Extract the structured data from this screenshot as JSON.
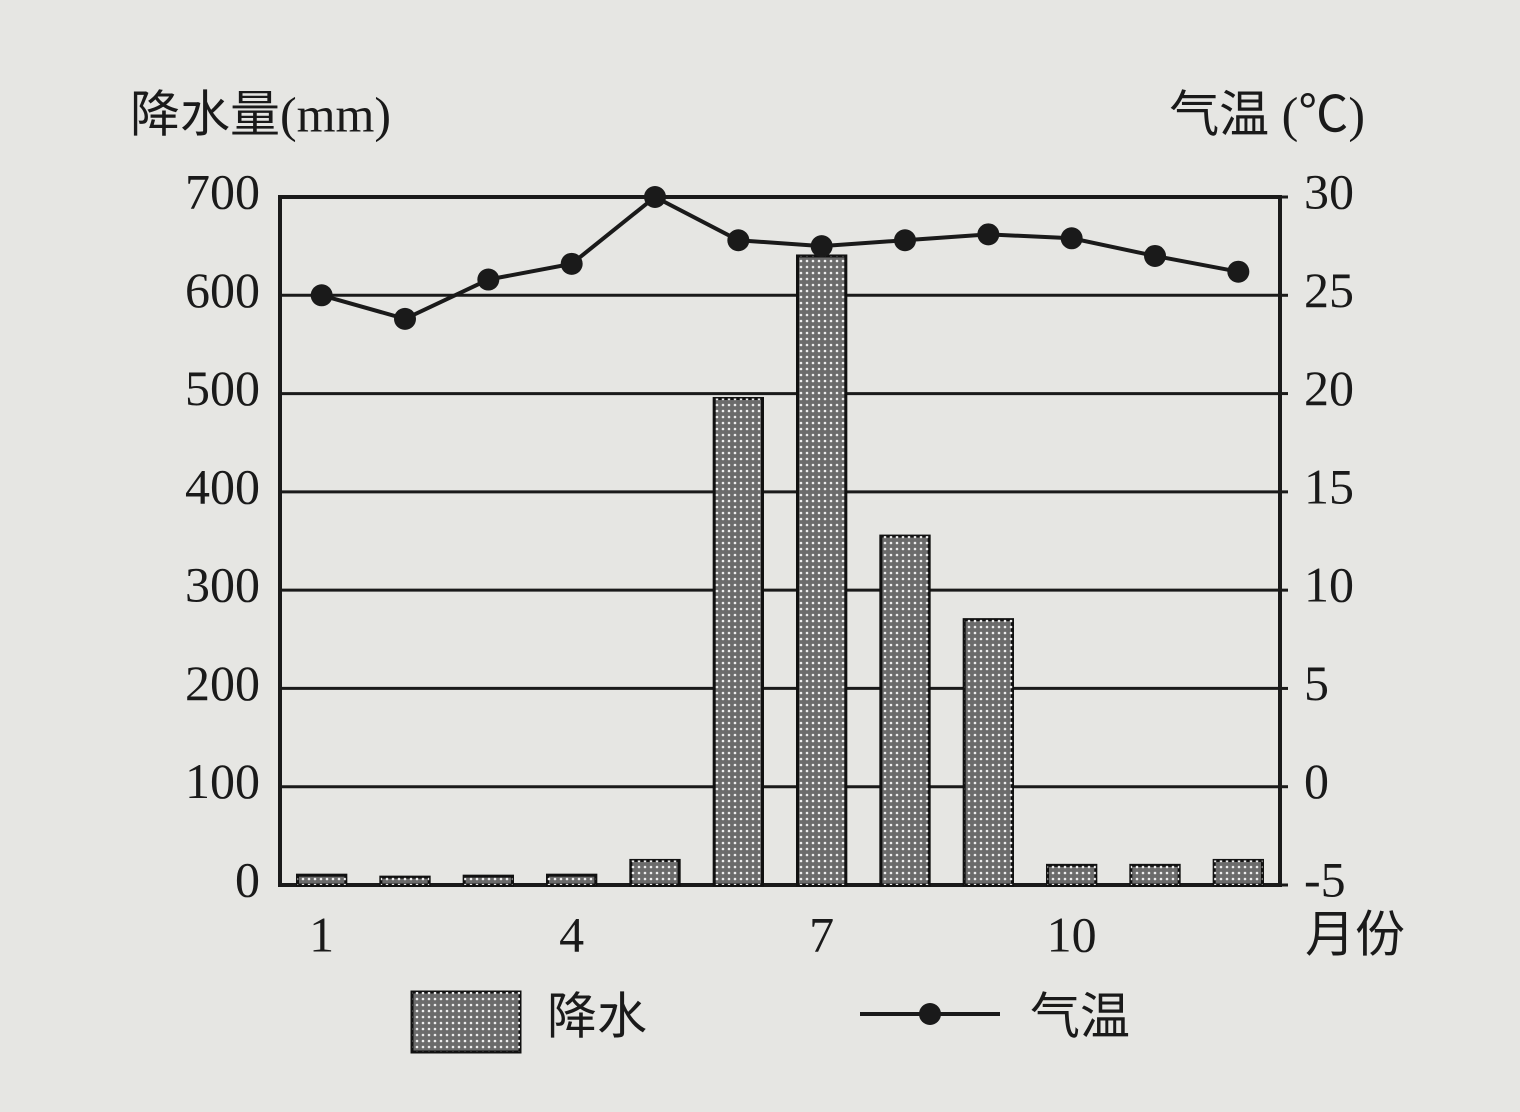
{
  "chart_data": {
    "type": "bar-line",
    "y_label": "降水量(mm)",
    "y2_label": "气温 (℃)",
    "x_label": "月份",
    "categories": [
      1,
      null,
      null,
      4,
      null,
      null,
      7,
      null,
      null,
      10,
      null,
      null
    ],
    "series": [
      {
        "name": "降水",
        "type": "bar",
        "color": "#6b6b6b",
        "values": [
          10,
          8,
          9,
          10,
          25,
          495,
          640,
          355,
          270,
          20,
          20,
          25
        ]
      },
      {
        "name": "气温",
        "type": "line",
        "axis": "y2",
        "color": "#1a1a1a",
        "values": [
          25,
          23.8,
          25.8,
          26.6,
          30,
          27.8,
          27.5,
          27.8,
          28.1,
          27.9,
          27,
          26.2
        ]
      }
    ],
    "ylim": [
      0,
      700
    ],
    "yticks": [
      0,
      100,
      200,
      300,
      400,
      500,
      600,
      700
    ],
    "y2lim": [
      -5,
      30
    ],
    "y2ticks": [
      -5,
      0,
      5,
      10,
      15,
      20,
      25,
      30
    ],
    "grid": true
  }
}
